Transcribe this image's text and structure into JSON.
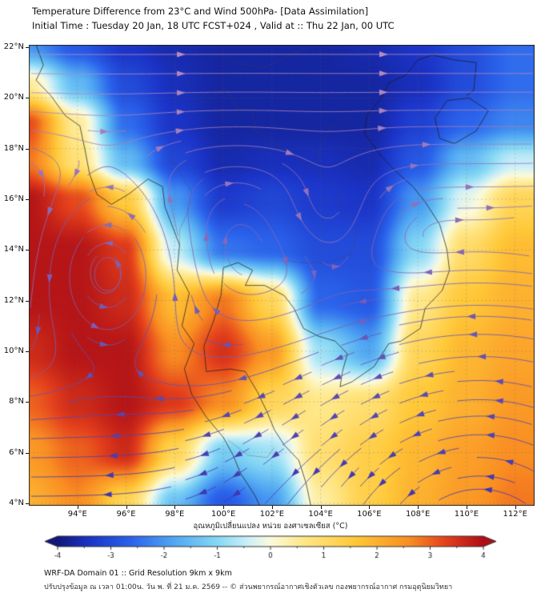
{
  "header": {
    "title": "Temperature Difference from 23°C and Wind 500hPa- [Data Assimilation]",
    "subtitle": "Initial Time : Tuesday 20 Jan, 18 UTC FCST+024 , Valid at ::  Thu 22 Jan, 00 UTC"
  },
  "footer": {
    "line1": "WRF-DA Domain 01 :: Grid Resolution 9km x 9km",
    "line2": "ปรับปรุงข้อมูล ณ เวลา 01:00น. วัน พ. ที่ 21 ม.ค. 2569 -- © ส่วนพยากรณ์อากาศเชิงตัวเลข กองพยากรณ์อากาศ กรมอุตุนิยมวิทยา"
  },
  "colorbar": {
    "label": "อุณหภูมิเปลี่ยนแปลง หน่วย องศาเซลเซียส (°C)",
    "ticks": [
      -4,
      -3,
      -2,
      -1,
      0,
      1,
      2,
      3,
      4
    ],
    "min": -4,
    "max": 4,
    "stops": [
      [
        -4,
        "#10187A"
      ],
      [
        -3.4,
        "#1B34C8"
      ],
      [
        -2.6,
        "#2B64EC"
      ],
      [
        -1.8,
        "#51A8F2"
      ],
      [
        -1,
        "#86D8F4"
      ],
      [
        -0.4,
        "#CFF0F8"
      ],
      [
        0,
        "#FBFBDC"
      ],
      [
        0.6,
        "#FFE88A"
      ],
      [
        1.6,
        "#FFC838"
      ],
      [
        2.6,
        "#F98E22"
      ],
      [
        3.3,
        "#E4401C"
      ],
      [
        4,
        "#AE0E16"
      ]
    ]
  },
  "chart_data": {
    "type": "heatmap",
    "title": "Temperature Difference from 23°C and Wind 500hPa- [Data Assimilation]",
    "subtitle": "Initial Time : Tuesday 20 Jan, 18 UTC FCST+024 , Valid at ::  Thu 22 Jan, 00 UTC",
    "units": "°C difference from 23°C",
    "lon_range": [
      92,
      112.8
    ],
    "lat_range": [
      3.9,
      22.1
    ],
    "x_ticks": [
      {
        "value": 94,
        "label": "94°E"
      },
      {
        "value": 96,
        "label": "96°E"
      },
      {
        "value": 98,
        "label": "98°E"
      },
      {
        "value": 100,
        "label": "100°E"
      },
      {
        "value": 102,
        "label": "102°E"
      },
      {
        "value": 104,
        "label": "104°E"
      },
      {
        "value": 106,
        "label": "106°E"
      },
      {
        "value": 108,
        "label": "108°E"
      },
      {
        "value": 110,
        "label": "110°E"
      },
      {
        "value": 112,
        "label": "112°E"
      }
    ],
    "y_ticks": [
      {
        "value": 22,
        "label": "22°N"
      },
      {
        "value": 20,
        "label": "20°N"
      },
      {
        "value": 18,
        "label": "18°N"
      },
      {
        "value": 16,
        "label": "16°N"
      },
      {
        "value": 14,
        "label": "14°N"
      },
      {
        "value": 12,
        "label": "12°N"
      },
      {
        "value": 10,
        "label": "10°N"
      },
      {
        "value": 8,
        "label": "8°N"
      },
      {
        "value": 6,
        "label": "6°N"
      },
      {
        "value": 4,
        "label": "4°N"
      }
    ],
    "grid_lons": [
      92,
      94,
      96,
      98,
      100,
      102,
      104,
      106,
      108,
      110,
      112
    ],
    "grid_lats": [
      22,
      20.5,
      19,
      17.5,
      16,
      14,
      12,
      10,
      8,
      6,
      4
    ],
    "values": [
      [
        -2.0,
        -2.8,
        -3.4,
        -3.6,
        -3.7,
        -3.7,
        -3.7,
        -3.6,
        -3.4,
        -3.0,
        -2.5
      ],
      [
        0.5,
        -1.5,
        -3.0,
        -3.5,
        -3.7,
        -3.7,
        -3.7,
        -3.7,
        -3.5,
        -3.0,
        -2.5
      ],
      [
        3.2,
        0.5,
        -2.5,
        -3.4,
        -3.7,
        -3.7,
        -3.7,
        -3.7,
        -3.2,
        -2.6,
        -2.2
      ],
      [
        2.8,
        0.8,
        -1.5,
        -3.1,
        -3.6,
        -3.5,
        -3.5,
        -3.6,
        -2.8,
        -1.5,
        -0.5
      ],
      [
        3.9,
        3.2,
        1.5,
        -2.0,
        -3.3,
        -3.1,
        -3.3,
        -3.4,
        -2.0,
        -0.2,
        1.2
      ],
      [
        3.9,
        3.9,
        3.4,
        -0.5,
        -2.4,
        -2.6,
        -3.0,
        -3.0,
        -1.0,
        1.0,
        1.8
      ],
      [
        3.9,
        3.9,
        3.6,
        1.8,
        2.8,
        1.2,
        -2.6,
        -2.8,
        0.6,
        1.6,
        2.0
      ],
      [
        3.6,
        3.9,
        3.9,
        2.6,
        3.5,
        2.4,
        -0.8,
        -1.8,
        1.2,
        1.9,
        2.2
      ],
      [
        3.0,
        3.6,
        3.9,
        3.4,
        2.6,
        1.2,
        0.6,
        0.9,
        1.6,
        2.0,
        2.4
      ],
      [
        2.4,
        3.0,
        3.6,
        1.2,
        -1.2,
        -0.8,
        0.9,
        1.4,
        1.9,
        2.3,
        2.6
      ],
      [
        2.0,
        2.6,
        1.2,
        -1.4,
        -2.8,
        -2.0,
        0.4,
        1.4,
        2.0,
        2.4,
        2.8
      ]
    ],
    "wind": {
      "description": "500hPa streamlines: westerlies north of ~14N, easterlies to the south, cyclonic eddies near 95E/13N and 104E/15N, anticyclonic sweep in the south-east",
      "base": {
        "amp": 1.0,
        "lat0": 14,
        "width": 2.4
      },
      "vortices": [
        {
          "lon": 95.2,
          "lat": 13.4,
          "strength": 1.15,
          "radius": 2.3
        },
        {
          "lon": 104.2,
          "lat": 15.1,
          "strength": 0.65,
          "radius": 1.7
        },
        {
          "lon": 110.5,
          "lat": 2.4,
          "strength": 0.9,
          "radius": 4.6
        }
      ]
    },
    "coastlines": [
      [
        [
          92.3,
          22.1
        ],
        [
          92.6,
          21.3
        ],
        [
          92.3,
          20.7
        ],
        [
          92.9,
          20.1
        ],
        [
          93.5,
          19.3
        ],
        [
          94.1,
          18.9
        ],
        [
          94.3,
          18.0
        ],
        [
          94.5,
          17.0
        ],
        [
          94.8,
          16.2
        ],
        [
          95.4,
          15.8
        ],
        [
          96.1,
          16.2
        ],
        [
          96.9,
          16.8
        ],
        [
          97.5,
          16.5
        ],
        [
          97.6,
          15.7
        ],
        [
          98.2,
          14.2
        ],
        [
          98.1,
          13.2
        ],
        [
          98.6,
          12.3
        ],
        [
          98.3,
          11.0
        ],
        [
          98.8,
          10.3
        ],
        [
          98.4,
          9.3
        ],
        [
          98.7,
          8.3
        ],
        [
          99.3,
          7.4
        ],
        [
          100.0,
          6.6
        ],
        [
          100.4,
          5.9
        ],
        [
          100.7,
          5.2
        ],
        [
          101.3,
          4.3
        ],
        [
          101.5,
          3.9
        ]
      ],
      [
        [
          103.6,
          3.9
        ],
        [
          103.4,
          4.8
        ],
        [
          103.1,
          5.7
        ],
        [
          102.5,
          6.3
        ],
        [
          102.1,
          6.9
        ],
        [
          101.8,
          7.6
        ],
        [
          101.4,
          8.4
        ],
        [
          100.9,
          9.2
        ],
        [
          100.3,
          9.3
        ],
        [
          99.3,
          9.2
        ],
        [
          99.2,
          10.2
        ],
        [
          99.6,
          11.2
        ],
        [
          99.9,
          12.2
        ],
        [
          100.0,
          13.3
        ],
        [
          100.6,
          13.5
        ],
        [
          101.2,
          13.2
        ],
        [
          100.9,
          12.6
        ],
        [
          101.7,
          12.6
        ],
        [
          102.5,
          12.2
        ],
        [
          102.9,
          11.7
        ],
        [
          103.3,
          10.9
        ],
        [
          103.9,
          10.6
        ],
        [
          104.6,
          10.4
        ],
        [
          105.1,
          9.9
        ],
        [
          104.9,
          9.2
        ],
        [
          104.8,
          8.6
        ],
        [
          105.3,
          8.8
        ],
        [
          106.2,
          9.4
        ],
        [
          106.8,
          10.3
        ],
        [
          107.3,
          10.4
        ],
        [
          108.1,
          10.9
        ],
        [
          108.3,
          11.7
        ],
        [
          109.0,
          12.4
        ],
        [
          109.3,
          13.2
        ],
        [
          109.2,
          14.0
        ],
        [
          108.9,
          15.0
        ],
        [
          108.3,
          15.9
        ],
        [
          107.8,
          16.5
        ],
        [
          107.1,
          17.1
        ],
        [
          106.5,
          17.7
        ],
        [
          105.8,
          18.6
        ],
        [
          105.9,
          19.3
        ],
        [
          106.5,
          20.0
        ],
        [
          106.8,
          20.6
        ],
        [
          107.5,
          20.9
        ],
        [
          108.0,
          21.5
        ],
        [
          108.6,
          21.7
        ],
        [
          109.5,
          21.5
        ],
        [
          110.4,
          21.4
        ],
        [
          110.3,
          20.3
        ],
        [
          110.0,
          20.1
        ]
      ],
      [
        [
          109.2,
          19.9
        ],
        [
          110.1,
          20.0
        ],
        [
          110.9,
          19.5
        ],
        [
          110.4,
          18.7
        ],
        [
          109.5,
          18.2
        ],
        [
          108.9,
          18.4
        ],
        [
          108.7,
          19.2
        ],
        [
          109.2,
          19.9
        ]
      ]
    ],
    "borders": [
      [
        [
          97.5,
          21.8
        ],
        [
          98.2,
          21.0
        ],
        [
          98.8,
          20.3
        ],
        [
          99.2,
          19.8
        ],
        [
          99.9,
          20.3
        ],
        [
          100.1,
          20.4
        ],
        [
          100.5,
          19.6
        ],
        [
          101.2,
          19.5
        ],
        [
          101.3,
          18.7
        ],
        [
          102.1,
          18.2
        ],
        [
          102.7,
          17.9
        ],
        [
          103.4,
          17.3
        ],
        [
          104.0,
          17.0
        ],
        [
          104.7,
          16.5
        ],
        [
          104.8,
          15.6
        ],
        [
          105.5,
          15.0
        ],
        [
          105.4,
          14.2
        ]
      ],
      [
        [
          102.5,
          13.6
        ],
        [
          103.2,
          13.5
        ],
        [
          104.3,
          13.5
        ],
        [
          105.2,
          13.8
        ],
        [
          105.4,
          14.2
        ]
      ],
      [
        [
          105.2,
          19.3
        ],
        [
          104.5,
          18.9
        ],
        [
          104.0,
          18.2
        ],
        [
          103.9,
          17.5
        ],
        [
          103.4,
          17.3
        ]
      ],
      [
        [
          100.2,
          21.5
        ],
        [
          101.0,
          21.3
        ],
        [
          101.7,
          21.2
        ],
        [
          102.5,
          21.6
        ],
        [
          103.5,
          22.0
        ]
      ],
      [
        [
          97.8,
          17.7
        ],
        [
          98.3,
          16.9
        ],
        [
          98.7,
          16.3
        ],
        [
          98.5,
          15.4
        ],
        [
          98.2,
          14.8
        ],
        [
          98.2,
          14.2
        ]
      ],
      [
        [
          100.2,
          6.5
        ],
        [
          101.0,
          5.9
        ],
        [
          101.8,
          5.8
        ],
        [
          102.1,
          6.2
        ]
      ]
    ]
  }
}
